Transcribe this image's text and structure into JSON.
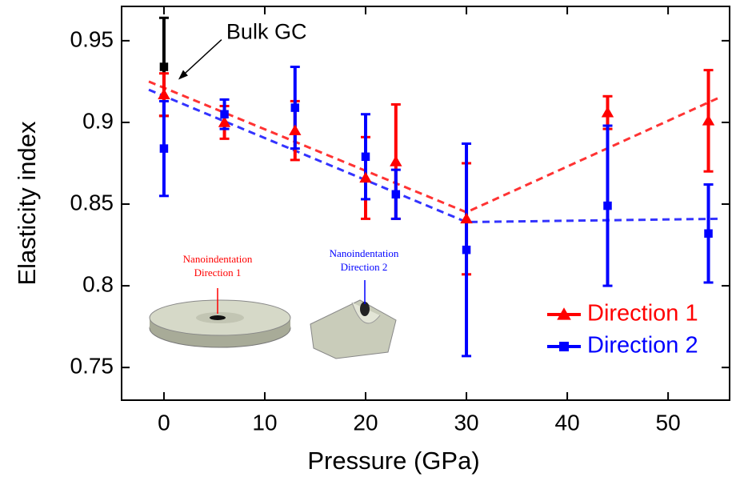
{
  "chart_data": {
    "type": "scatter",
    "x_label": "Pressure (GPa)",
    "y_label": "Elasticity index",
    "xlim": [
      -4.2,
      56.1
    ],
    "ylim": [
      0.73,
      0.971
    ],
    "xticks": [
      0,
      10,
      20,
      30,
      40,
      50
    ],
    "yticks": [
      0.75,
      0.8,
      0.85,
      0.9,
      0.95
    ],
    "series": [
      {
        "name": "Direction 1",
        "color": "#ff0000",
        "marker": "triangle",
        "x": [
          0,
          6,
          13,
          20,
          23,
          30,
          44,
          54
        ],
        "values": [
          0.917,
          0.9,
          0.895,
          0.866,
          0.876,
          0.841,
          0.906,
          0.901
        ],
        "errors": [
          0.013,
          0.01,
          0.018,
          0.025,
          0.035,
          0.034,
          0.01,
          0.031
        ]
      },
      {
        "name": "Direction 2",
        "color": "#0000ff",
        "marker": "square",
        "x": [
          0,
          6,
          13,
          20,
          23,
          30,
          44,
          54
        ],
        "values": [
          0.884,
          0.905,
          0.909,
          0.879,
          0.856,
          0.822,
          0.849,
          0.832
        ],
        "errors": [
          0.029,
          0.009,
          0.025,
          0.026,
          0.015,
          0.065,
          0.049,
          0.03
        ]
      }
    ],
    "reference_point": {
      "label": "Bulk GC",
      "color": "#000000",
      "x": 0,
      "value": 0.934,
      "error": 0.03
    },
    "trend_lines": [
      {
        "color": "#ff3333",
        "x": [
          -1.5,
          30,
          55
        ],
        "values": [
          0.925,
          0.845,
          0.915
        ]
      },
      {
        "color": "#3333ff",
        "x": [
          -1.5,
          30,
          55
        ],
        "values": [
          0.92,
          0.839,
          0.841
        ]
      }
    ],
    "insets": [
      {
        "color": "#ff0000",
        "lines": [
          "Nanoindentation",
          "Direction 1"
        ]
      },
      {
        "color": "#0000ff",
        "lines": [
          "Nanoindentation",
          "Direction 2"
        ]
      }
    ],
    "legend": "lower right"
  }
}
